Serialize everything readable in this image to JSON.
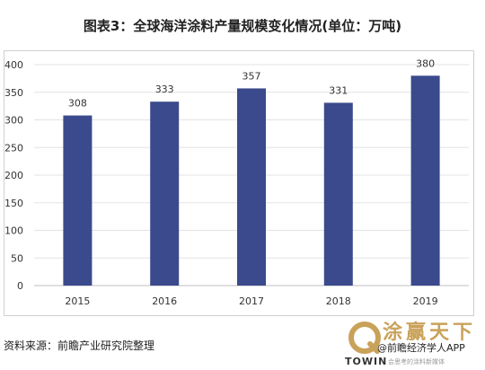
{
  "chart_data": {
    "type": "bar",
    "title": "图表3：全球海洋涂料产量规模变化情况(单位：万吨)",
    "categories": [
      "2015",
      "2016",
      "2017",
      "2018",
      "2019"
    ],
    "values": [
      308,
      333,
      357,
      331,
      380
    ],
    "data_labels": [
      "308",
      "333",
      "357",
      "331",
      "380"
    ],
    "y_ticks": [
      "0",
      "50",
      "100",
      "150",
      "200",
      "250",
      "300",
      "350",
      "400"
    ],
    "ylim": [
      0,
      400
    ],
    "xlabel": "",
    "ylabel": "",
    "grid": true,
    "bar_color": "#3a4a8c"
  },
  "source": "资料来源：前瞻产业研究院整理",
  "branding": {
    "name": "涂赢天下",
    "account": "@前瞻经济学人APP",
    "towin": "TOWIN",
    "tagline": "会思考的涂料新媒体",
    "accent": "#c9a25a"
  }
}
